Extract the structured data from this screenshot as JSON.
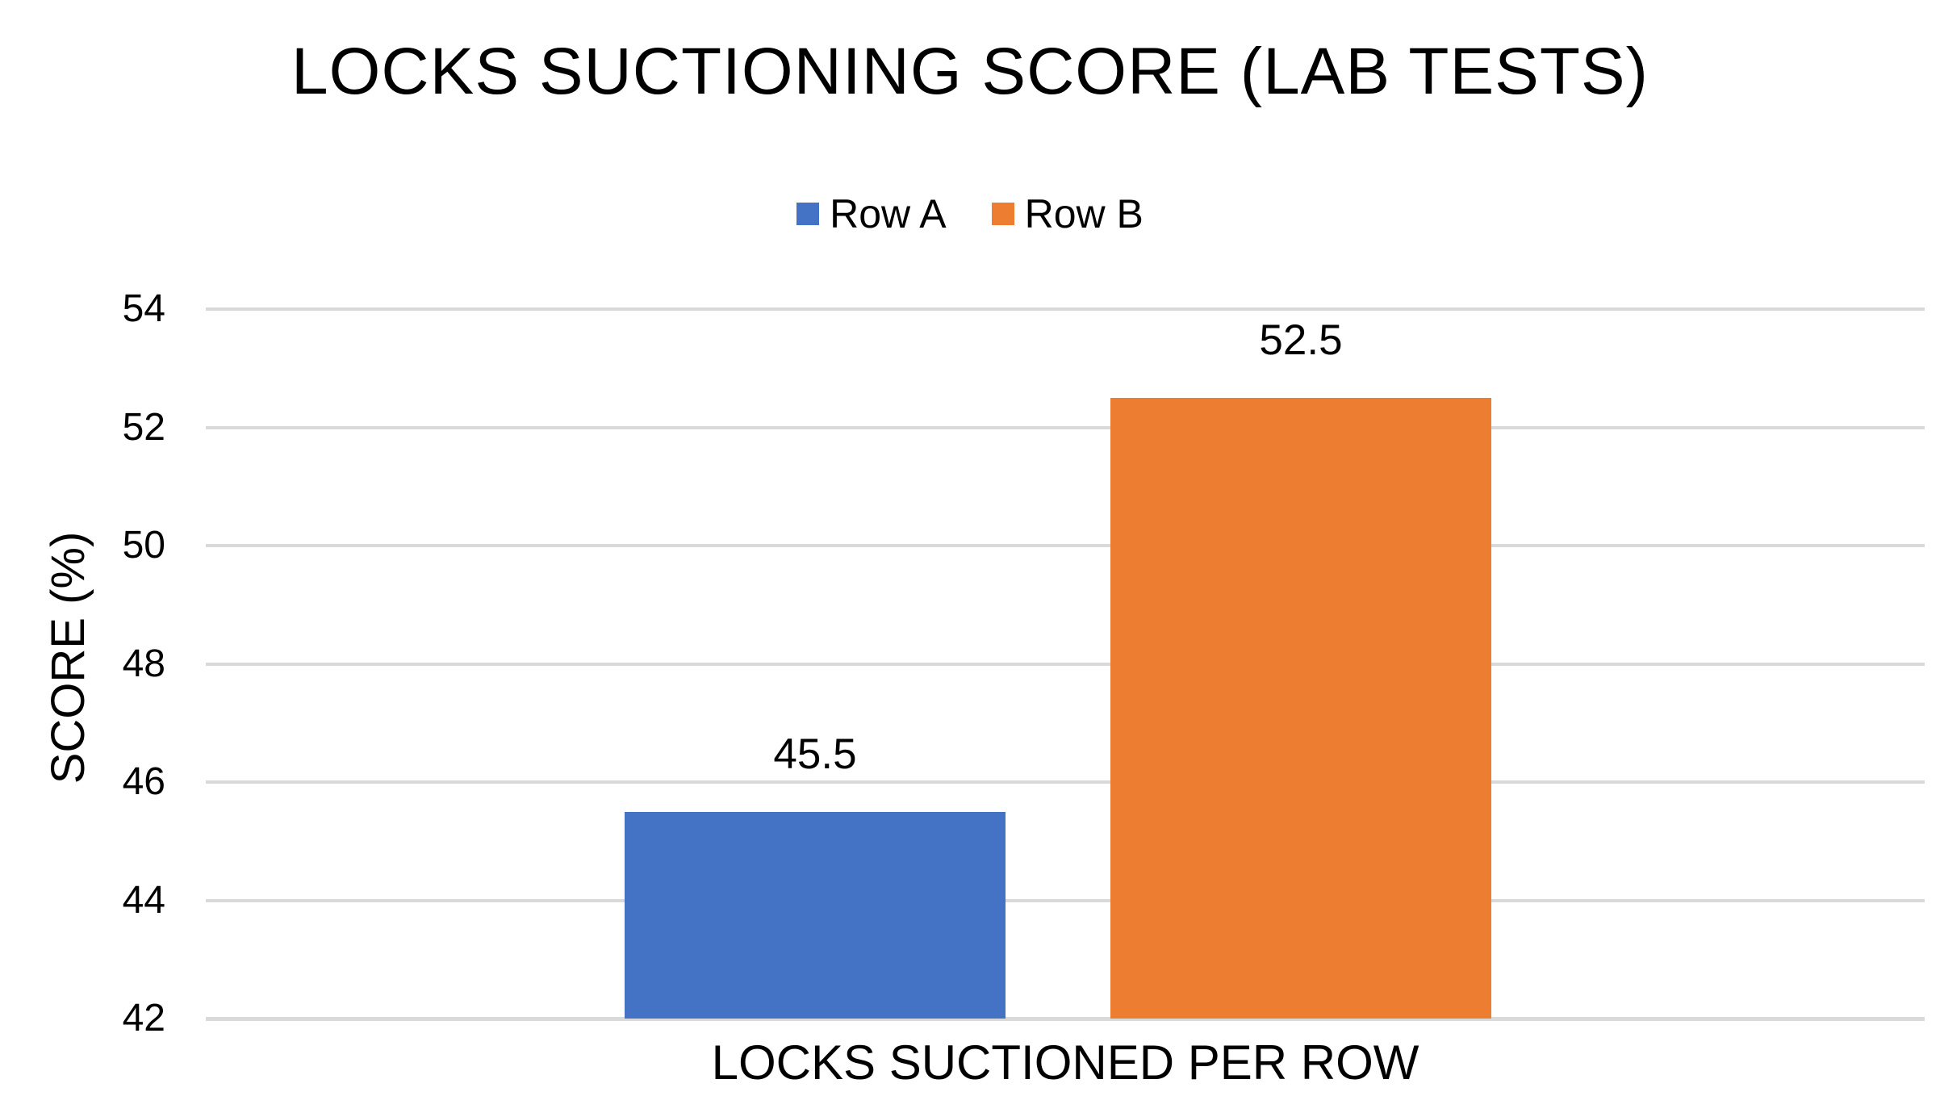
{
  "chart_data": {
    "type": "bar",
    "title": "LOCKS SUCTIONING SCORE (LAB TESTS)",
    "categories": [
      "LOCKS SUCTIONED PER ROW"
    ],
    "series": [
      {
        "name": "Row A",
        "values": [
          45.5
        ],
        "color": "#4472C4",
        "data_label": "45.5"
      },
      {
        "name": "Row B",
        "values": [
          52.5
        ],
        "color": "#ED7D31",
        "data_label": "52.5"
      }
    ],
    "xlabel": "",
    "ylabel": "SCORE (%)",
    "ylim": [
      42,
      54
    ],
    "yticks": [
      54,
      52,
      50,
      48,
      46,
      44,
      42
    ],
    "ytick_step": 2,
    "grid": true,
    "legend_position": "top",
    "colors": {
      "gridline": "#D9D9D9",
      "background": "#FFFFFF",
      "text": "#000000"
    }
  }
}
